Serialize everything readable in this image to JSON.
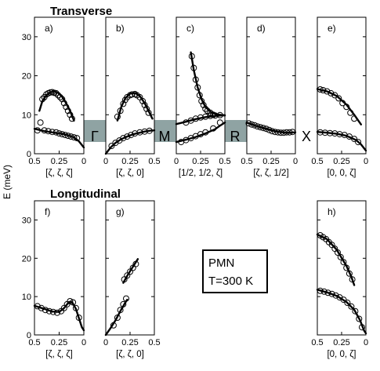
{
  "title_top": "Transverse",
  "title_bottom": "Longitudinal",
  "ylabel": "E (meV)",
  "legend": {
    "line1": "PMN",
    "line2": "T=300 K"
  },
  "symmetry_points": [
    "Γ",
    "M",
    "R",
    "X"
  ],
  "colors": {
    "band": "#8fa3a3",
    "ink": "#000000"
  },
  "chart_data": [
    {
      "id": "a",
      "type": "scatter",
      "label": "a)",
      "row": "top",
      "col": 0,
      "xlabel": "[ζ, ζ, ζ]",
      "xlim": [
        0.5,
        0
      ],
      "ylim": [
        0,
        35
      ],
      "xticks": [
        0.5,
        0.25,
        0
      ],
      "xticklabels": [
        "0.5",
        "0.25",
        "0"
      ],
      "yticks": [
        0,
        10,
        20,
        30
      ],
      "points": [
        [
          0.47,
          6
        ],
        [
          0.44,
          8
        ],
        [
          0.42,
          14
        ],
        [
          0.4,
          14.5
        ],
        [
          0.38,
          15.2
        ],
        [
          0.36,
          15.5
        ],
        [
          0.34,
          15.7
        ],
        [
          0.32,
          15.8
        ],
        [
          0.3,
          15.6
        ],
        [
          0.28,
          15.5
        ],
        [
          0.26,
          15
        ],
        [
          0.24,
          14.5
        ],
        [
          0.22,
          14
        ],
        [
          0.2,
          13
        ],
        [
          0.18,
          12
        ],
        [
          0.16,
          11
        ],
        [
          0.14,
          10
        ],
        [
          0.12,
          9
        ],
        [
          0.4,
          6
        ],
        [
          0.36,
          5.8
        ],
        [
          0.32,
          5.6
        ],
        [
          0.28,
          5.5
        ],
        [
          0.25,
          5.2
        ],
        [
          0.22,
          5
        ],
        [
          0.19,
          4.8
        ],
        [
          0.16,
          4.6
        ],
        [
          0.13,
          4.4
        ],
        [
          0.1,
          4.2
        ],
        [
          0.07,
          4
        ]
      ],
      "lines": [
        [
          [
            0.45,
            11
          ],
          [
            0.42,
            13.5
          ],
          [
            0.38,
            15
          ],
          [
            0.34,
            15.8
          ],
          [
            0.3,
            16
          ],
          [
            0.26,
            15.6
          ],
          [
            0.22,
            14.6
          ],
          [
            0.18,
            13
          ],
          [
            0.14,
            11
          ],
          [
            0.1,
            8.5
          ]
        ],
        [
          [
            0.5,
            6.4
          ],
          [
            0.45,
            6.1
          ],
          [
            0.4,
            5.8
          ],
          [
            0.35,
            5.6
          ],
          [
            0.3,
            5.4
          ],
          [
            0.25,
            5.2
          ],
          [
            0.2,
            5
          ],
          [
            0.15,
            4.6
          ],
          [
            0.1,
            4.2
          ],
          [
            0.05,
            3.2
          ],
          [
            0,
            1.6
          ]
        ]
      ]
    },
    {
      "id": "b",
      "type": "scatter",
      "label": "b)",
      "row": "top",
      "col": 1,
      "xlabel": "[ζ, ζ, 0]",
      "xlim": [
        0,
        0.5
      ],
      "ylim": [
        0,
        35
      ],
      "xticks": [
        0,
        0.25,
        0.5
      ],
      "xticklabels": [
        "0",
        "0.25",
        "0.5"
      ],
      "yticks": [
        0,
        10,
        20,
        30
      ],
      "points": [
        [
          0.12,
          9.5
        ],
        [
          0.15,
          11
        ],
        [
          0.18,
          12.8
        ],
        [
          0.2,
          13.8
        ],
        [
          0.22,
          14.5
        ],
        [
          0.25,
          15
        ],
        [
          0.27,
          15.2
        ],
        [
          0.3,
          15.3
        ],
        [
          0.32,
          15
        ],
        [
          0.35,
          14.5
        ],
        [
          0.38,
          13.5
        ],
        [
          0.4,
          12.5
        ],
        [
          0.42,
          11.5
        ],
        [
          0.44,
          10.5
        ],
        [
          0.06,
          2
        ],
        [
          0.1,
          2.8
        ],
        [
          0.14,
          3.4
        ],
        [
          0.18,
          4
        ],
        [
          0.22,
          4.4
        ],
        [
          0.26,
          4.8
        ],
        [
          0.3,
          5.2
        ],
        [
          0.35,
          5.5
        ],
        [
          0.4,
          5.7
        ],
        [
          0.45,
          5.9
        ]
      ],
      "lines": [
        [
          [
            0.12,
            8.5
          ],
          [
            0.16,
            12
          ],
          [
            0.2,
            14.2
          ],
          [
            0.25,
            15.4
          ],
          [
            0.3,
            15.6
          ],
          [
            0.35,
            14.8
          ],
          [
            0.4,
            13
          ],
          [
            0.45,
            10.5
          ],
          [
            0.48,
            9
          ]
        ],
        [
          [
            0,
            0
          ],
          [
            0.05,
            1.6
          ],
          [
            0.1,
            2.8
          ],
          [
            0.15,
            3.6
          ],
          [
            0.2,
            4.2
          ],
          [
            0.25,
            4.7
          ],
          [
            0.3,
            5.1
          ],
          [
            0.35,
            5.4
          ],
          [
            0.4,
            5.7
          ],
          [
            0.45,
            5.9
          ],
          [
            0.5,
            6
          ]
        ]
      ]
    },
    {
      "id": "c",
      "type": "scatter",
      "label": "c)",
      "row": "top",
      "col": 2,
      "xlabel": "[1/2, 1/2, ζ]",
      "xlim": [
        0,
        0.5
      ],
      "ylim": [
        0,
        35
      ],
      "xticks": [
        0,
        0.25,
        0.5
      ],
      "xticklabels": [
        "0",
        "0.25",
        "0.5"
      ],
      "yticks": [
        0,
        10,
        20,
        30
      ],
      "points": [
        [
          0.16,
          25
        ],
        [
          0.18,
          22
        ],
        [
          0.2,
          19
        ],
        [
          0.22,
          17
        ],
        [
          0.24,
          15
        ],
        [
          0.26,
          13.5
        ],
        [
          0.28,
          12.5
        ],
        [
          0.3,
          11.5
        ],
        [
          0.32,
          11
        ],
        [
          0.35,
          10.5
        ],
        [
          0.38,
          10
        ],
        [
          0.1,
          8
        ],
        [
          0.15,
          8.5
        ],
        [
          0.2,
          9
        ],
        [
          0.25,
          9.3
        ],
        [
          0.3,
          9.5
        ],
        [
          0.35,
          9.7
        ],
        [
          0.4,
          9.8
        ],
        [
          0.45,
          9.9
        ],
        [
          0.05,
          3
        ],
        [
          0.1,
          3.5
        ],
        [
          0.15,
          4
        ],
        [
          0.2,
          4.5
        ],
        [
          0.25,
          5
        ],
        [
          0.3,
          5.5
        ],
        [
          0.38,
          6.5
        ],
        [
          0.45,
          8
        ]
      ],
      "lines": [
        [
          [
            0.15,
            26
          ],
          [
            0.18,
            21.5
          ],
          [
            0.22,
            17
          ],
          [
            0.26,
            14
          ],
          [
            0.3,
            12
          ],
          [
            0.35,
            10.8
          ],
          [
            0.4,
            10.2
          ],
          [
            0.45,
            10
          ],
          [
            0.5,
            9.8
          ]
        ],
        [
          [
            0,
            7.6
          ],
          [
            0.1,
            8.2
          ],
          [
            0.2,
            8.9
          ],
          [
            0.3,
            9.4
          ],
          [
            0.4,
            9.7
          ],
          [
            0.5,
            9.9
          ]
        ],
        [
          [
            0,
            3
          ],
          [
            0.1,
            3.6
          ],
          [
            0.2,
            4.3
          ],
          [
            0.3,
            5.2
          ],
          [
            0.4,
            6.3
          ],
          [
            0.45,
            7.2
          ],
          [
            0.5,
            8
          ]
        ]
      ]
    },
    {
      "id": "d",
      "type": "scatter",
      "label": "d)",
      "row": "top",
      "col": 3,
      "xlabel": "[ζ, ζ, 1/2]",
      "xlim": [
        0.5,
        0
      ],
      "ylim": [
        0,
        35
      ],
      "xticks": [
        0.5,
        0.25,
        0
      ],
      "xticklabels": [
        "0.5",
        "0.25",
        "0"
      ],
      "yticks": [
        0,
        10,
        20,
        30
      ],
      "points": [
        [
          0.48,
          7.8
        ],
        [
          0.45,
          7.5
        ],
        [
          0.42,
          7.3
        ],
        [
          0.39,
          7
        ],
        [
          0.36,
          6.8
        ],
        [
          0.33,
          6.6
        ],
        [
          0.3,
          6.4
        ],
        [
          0.27,
          6.1
        ],
        [
          0.24,
          5.8
        ],
        [
          0.21,
          5.6
        ],
        [
          0.18,
          5.5
        ],
        [
          0.15,
          5.4
        ],
        [
          0.12,
          5.4
        ],
        [
          0.09,
          5.5
        ],
        [
          0.06,
          5.5
        ],
        [
          0.03,
          5.6
        ]
      ],
      "lines": [
        [
          [
            0.5,
            8
          ],
          [
            0.4,
            7.1
          ],
          [
            0.3,
            6.4
          ],
          [
            0.2,
            5.7
          ],
          [
            0.1,
            5.4
          ],
          [
            0,
            5.5
          ]
        ]
      ]
    },
    {
      "id": "e",
      "type": "scatter",
      "label": "e)",
      "row": "top",
      "col": 4,
      "xlabel": "[0, 0, ζ]",
      "xlim": [
        0.5,
        0
      ],
      "ylim": [
        0,
        35
      ],
      "xticks": [
        0.5,
        0.25,
        0
      ],
      "xticklabels": [
        "0.5",
        "0.25",
        "0"
      ],
      "yticks": [
        0,
        10,
        20,
        30
      ],
      "points": [
        [
          0.47,
          16.5
        ],
        [
          0.44,
          16.3
        ],
        [
          0.4,
          16
        ],
        [
          0.36,
          15.5
        ],
        [
          0.32,
          15
        ],
        [
          0.28,
          14.2
        ],
        [
          0.24,
          13
        ],
        [
          0.2,
          12
        ],
        [
          0.16,
          10.5
        ],
        [
          0.12,
          9
        ],
        [
          0.47,
          5.5
        ],
        [
          0.42,
          5.4
        ],
        [
          0.37,
          5.3
        ],
        [
          0.32,
          5.2
        ],
        [
          0.27,
          5
        ],
        [
          0.22,
          4.8
        ],
        [
          0.17,
          4.4
        ],
        [
          0.12,
          3.8
        ],
        [
          0.08,
          3
        ]
      ],
      "lines": [
        [
          [
            0.5,
            16.6
          ],
          [
            0.4,
            16
          ],
          [
            0.3,
            14.8
          ],
          [
            0.2,
            12.6
          ],
          [
            0.12,
            10
          ],
          [
            0.05,
            7.5
          ]
        ],
        [
          [
            0.5,
            5.6
          ],
          [
            0.4,
            5.4
          ],
          [
            0.3,
            5.1
          ],
          [
            0.2,
            4.6
          ],
          [
            0.1,
            3.5
          ],
          [
            0.05,
            2.4
          ],
          [
            0,
            0.8
          ]
        ]
      ]
    },
    {
      "id": "f",
      "type": "scatter",
      "label": "f)",
      "row": "bottom",
      "col": 0,
      "xlabel": "[ζ, ζ, ζ]",
      "xlim": [
        0.5,
        0
      ],
      "ylim": [
        0,
        35
      ],
      "xticks": [
        0.5,
        0.25,
        0
      ],
      "xticklabels": [
        "0.5",
        "0.25",
        "0"
      ],
      "yticks": [
        0,
        10,
        20,
        30
      ],
      "points": [
        [
          0.47,
          7.5
        ],
        [
          0.43,
          7
        ],
        [
          0.39,
          6.5
        ],
        [
          0.35,
          6.2
        ],
        [
          0.31,
          6
        ],
        [
          0.27,
          5.8
        ],
        [
          0.23,
          6.2
        ],
        [
          0.2,
          7
        ],
        [
          0.17,
          8
        ],
        [
          0.14,
          8.8
        ],
        [
          0.11,
          8.5
        ],
        [
          0.08,
          7
        ],
        [
          0.05,
          4.5
        ]
      ],
      "lines": [
        [
          [
            0.5,
            7.6
          ],
          [
            0.4,
            6.8
          ],
          [
            0.32,
            6.1
          ],
          [
            0.25,
            6
          ],
          [
            0.2,
            7
          ],
          [
            0.15,
            8.6
          ],
          [
            0.12,
            8.6
          ],
          [
            0.08,
            6.8
          ],
          [
            0.05,
            4.4
          ],
          [
            0.02,
            2
          ],
          [
            0,
            1.2
          ]
        ]
      ]
    },
    {
      "id": "g",
      "type": "scatter",
      "label": "g)",
      "row": "bottom",
      "col": 1,
      "xlabel": "[ζ, ζ, 0]",
      "xlim": [
        0,
        0.5
      ],
      "ylim": [
        0,
        35
      ],
      "xticks": [
        0,
        0.25,
        0.5
      ],
      "xticklabels": [
        "0",
        "0.25",
        "0.5"
      ],
      "yticks": [
        0,
        10,
        20,
        30
      ],
      "points": [
        [
          0.08,
          2.5
        ],
        [
          0.12,
          4.5
        ],
        [
          0.15,
          6.5
        ],
        [
          0.18,
          8
        ],
        [
          0.21,
          9.5
        ],
        [
          0.19,
          14.5
        ],
        [
          0.22,
          15.5
        ],
        [
          0.25,
          16.5
        ],
        [
          0.28,
          17.5
        ],
        [
          0.31,
          18.5
        ]
      ],
      "lines": [
        [
          [
            0,
            0
          ],
          [
            0.05,
            1.8
          ],
          [
            0.1,
            3.8
          ],
          [
            0.15,
            6.2
          ],
          [
            0.2,
            8.4
          ],
          [
            0.22,
            9.2
          ]
        ],
        [
          [
            0.18,
            13.6
          ],
          [
            0.22,
            15.4
          ],
          [
            0.26,
            17
          ],
          [
            0.3,
            18.6
          ],
          [
            0.33,
            19.8
          ]
        ]
      ]
    },
    {
      "id": "h",
      "type": "scatter",
      "label": "h)",
      "row": "bottom",
      "col": 4,
      "xlabel": "[0, 0, ζ]",
      "xlim": [
        0.5,
        0
      ],
      "ylim": [
        0,
        35
      ],
      "xticks": [
        0.5,
        0.25,
        0
      ],
      "xticklabels": [
        "0.5",
        "0.25",
        "0"
      ],
      "yticks": [
        0,
        10,
        20,
        30
      ],
      "points": [
        [
          0.47,
          26
        ],
        [
          0.44,
          25.5
        ],
        [
          0.41,
          25
        ],
        [
          0.38,
          24.2
        ],
        [
          0.35,
          23.5
        ],
        [
          0.32,
          22.5
        ],
        [
          0.29,
          21.5
        ],
        [
          0.26,
          20.3
        ],
        [
          0.23,
          19
        ],
        [
          0.2,
          17.5
        ],
        [
          0.17,
          16
        ],
        [
          0.14,
          14.5
        ],
        [
          0.47,
          11.5
        ],
        [
          0.43,
          11.3
        ],
        [
          0.39,
          11
        ],
        [
          0.35,
          10.7
        ],
        [
          0.31,
          10.3
        ],
        [
          0.27,
          9.8
        ],
        [
          0.23,
          9.2
        ],
        [
          0.19,
          8.4
        ],
        [
          0.15,
          7.4
        ],
        [
          0.11,
          6.2
        ],
        [
          0.07,
          4.2
        ],
        [
          0.04,
          2
        ]
      ],
      "lines": [
        [
          [
            0.5,
            26.2
          ],
          [
            0.4,
            25
          ],
          [
            0.3,
            22.2
          ],
          [
            0.2,
            18
          ],
          [
            0.15,
            15.2
          ],
          [
            0.12,
            13
          ]
        ],
        [
          [
            0.5,
            11.8
          ],
          [
            0.4,
            11.1
          ],
          [
            0.3,
            10.2
          ],
          [
            0.2,
            8.6
          ],
          [
            0.12,
            6.6
          ],
          [
            0.06,
            3.8
          ],
          [
            0.02,
            1.2
          ],
          [
            0,
            0.4
          ]
        ]
      ]
    }
  ]
}
